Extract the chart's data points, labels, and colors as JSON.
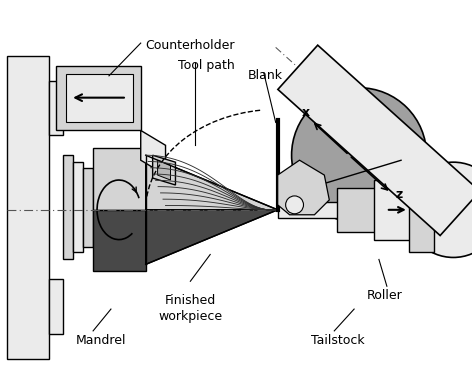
{
  "bg_color": "#ffffff",
  "lk": "#000000",
  "lg": "#d4d4d4",
  "vlg": "#ebebeb",
  "mg": "#a0a0a0",
  "dg": "#484848",
  "dg2": "#686868",
  "labels": {
    "counterholder": "Counterholder",
    "tool_path": "Tool path",
    "blank": "Blank",
    "finished_workpiece": "Finished\nworkpiece",
    "mandrel": "Mandrel",
    "tailstock": "Tailstock",
    "roller": "Roller"
  }
}
